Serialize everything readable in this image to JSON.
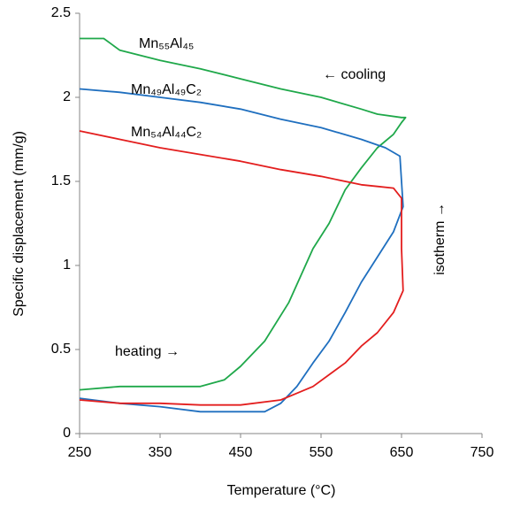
{
  "chart_data": {
    "type": "line",
    "xlabel": "Temperature (°C)",
    "ylabel": "Specific displacement (mm/g)",
    "xlim": [
      250,
      750
    ],
    "xticks": [
      250,
      350,
      450,
      550,
      650,
      750
    ],
    "ylim": [
      0,
      2.5
    ],
    "yticks": [
      0,
      0.5,
      1,
      1.5,
      2,
      2.5
    ],
    "grid": false,
    "annotations": [
      "← cooling",
      "heating →",
      "isotherm →"
    ],
    "series": [
      {
        "name": "Mn₅₅Al₄₅",
        "color": "#1fa84a",
        "x": [
          250,
          300,
          350,
          400,
          430,
          450,
          480,
          510,
          540,
          560,
          580,
          600,
          620,
          640,
          650,
          655,
          650,
          620,
          600,
          550,
          500,
          450,
          400,
          350,
          300,
          280,
          250
        ],
        "values": [
          0.26,
          0.28,
          0.28,
          0.28,
          0.32,
          0.4,
          0.55,
          0.78,
          1.1,
          1.25,
          1.45,
          1.58,
          1.7,
          1.78,
          1.85,
          1.88,
          1.88,
          1.9,
          1.93,
          2.0,
          2.05,
          2.11,
          2.17,
          2.22,
          2.28,
          2.35,
          2.35
        ]
      },
      {
        "name": "Mn₄₉Al₄₉C₂",
        "color": "#1f6fbf",
        "x": [
          250,
          300,
          350,
          400,
          450,
          480,
          500,
          520,
          540,
          560,
          580,
          600,
          620,
          640,
          652,
          650,
          648,
          630,
          600,
          550,
          500,
          450,
          400,
          350,
          300,
          250
        ],
        "values": [
          0.21,
          0.18,
          0.16,
          0.13,
          0.13,
          0.13,
          0.18,
          0.28,
          0.42,
          0.55,
          0.72,
          0.9,
          1.05,
          1.2,
          1.35,
          1.5,
          1.65,
          1.7,
          1.75,
          1.82,
          1.87,
          1.93,
          1.97,
          2.0,
          2.03,
          2.05
        ]
      },
      {
        "name": "Mn₅₄Al₄₄C₂",
        "color": "#e31e1e",
        "x": [
          250,
          300,
          350,
          400,
          450,
          500,
          520,
          540,
          560,
          580,
          600,
          620,
          640,
          652,
          650,
          650,
          640,
          620,
          600,
          550,
          500,
          450,
          400,
          350,
          300,
          250
        ],
        "values": [
          0.2,
          0.18,
          0.18,
          0.17,
          0.17,
          0.2,
          0.24,
          0.28,
          0.35,
          0.42,
          0.52,
          0.6,
          0.72,
          0.85,
          1.1,
          1.4,
          1.46,
          1.47,
          1.48,
          1.53,
          1.57,
          1.62,
          1.66,
          1.7,
          1.75,
          1.8
        ]
      }
    ]
  }
}
